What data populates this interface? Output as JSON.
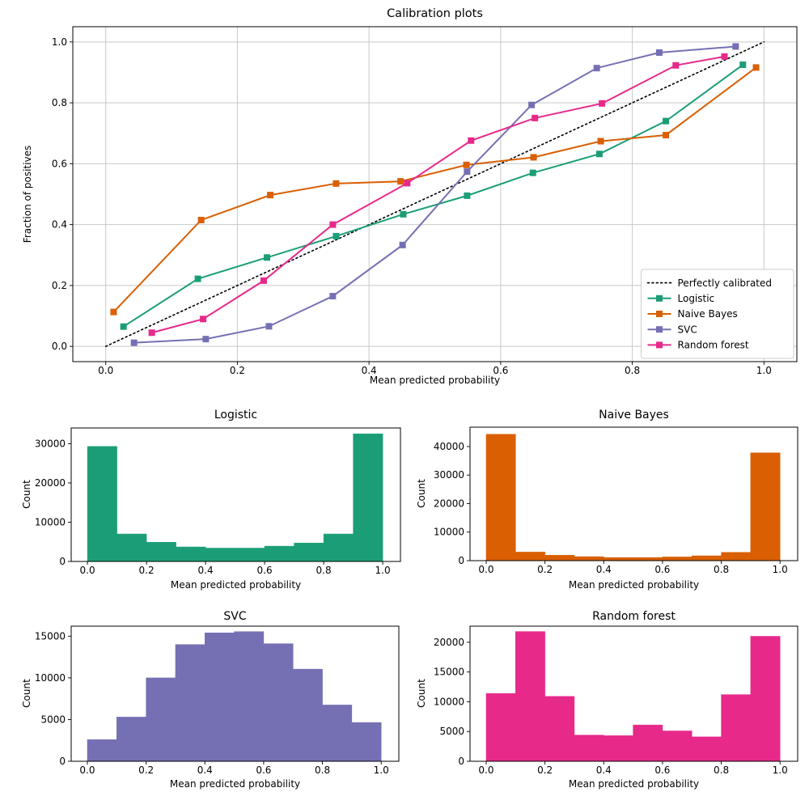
{
  "figure": {
    "background": "#ffffff"
  },
  "colors": {
    "logistic": "#1b9e77",
    "naive_bayes": "#d95f02",
    "svc": "#7570b3",
    "random_forest": "#e7298a",
    "reference": "#000000",
    "grid": "#c9c9c9",
    "legend_border": "#cccccc"
  },
  "chart_data": [
    {
      "type": "line",
      "title": "Calibration plots",
      "xlabel": "Mean predicted probability",
      "ylabel": "Fraction of positives",
      "xlim": [
        -0.05,
        1.05
      ],
      "ylim": [
        -0.05,
        1.05
      ],
      "xtick_values": [
        0,
        0.2,
        0.4,
        0.6,
        0.8,
        1
      ],
      "xtick_labels": [
        "0.0",
        "0.2",
        "0.4",
        "0.6",
        "0.8",
        "1.0"
      ],
      "ytick_values": [
        0,
        0.2,
        0.4,
        0.6,
        0.8,
        1
      ],
      "ytick_labels": [
        "0.0",
        "0.2",
        "0.4",
        "0.6",
        "0.8",
        "1.0"
      ],
      "grid": true,
      "legend": {
        "position": "lower right",
        "entries": [
          "Perfectly calibrated",
          "Logistic",
          "Naive Bayes",
          "SVC",
          "Random forest"
        ]
      },
      "series": [
        {
          "name": "Perfectly calibrated",
          "color": "#000000",
          "style": "dotted",
          "marker": "none",
          "x": [
            0,
            1
          ],
          "y": [
            0,
            1
          ]
        },
        {
          "name": "Logistic",
          "color": "#1b9e77",
          "style": "solid",
          "marker": "square",
          "x": [
            0.027,
            0.14,
            0.245,
            0.35,
            0.452,
            0.549,
            0.649,
            0.75,
            0.851,
            0.968
          ],
          "y": [
            0.065,
            0.222,
            0.292,
            0.362,
            0.434,
            0.495,
            0.57,
            0.632,
            0.74,
            0.925
          ]
        },
        {
          "name": "Naive Bayes",
          "color": "#d95f02",
          "style": "solid",
          "marker": "square",
          "x": [
            0.012,
            0.145,
            0.25,
            0.35,
            0.448,
            0.548,
            0.65,
            0.752,
            0.851,
            0.988
          ],
          "y": [
            0.113,
            0.415,
            0.497,
            0.535,
            0.542,
            0.596,
            0.621,
            0.674,
            0.694,
            0.916
          ]
        },
        {
          "name": "SVC",
          "color": "#7570b3",
          "style": "solid",
          "marker": "square",
          "x": [
            0.043,
            0.152,
            0.248,
            0.345,
            0.451,
            0.549,
            0.647,
            0.746,
            0.841,
            0.957
          ],
          "y": [
            0.012,
            0.024,
            0.066,
            0.165,
            0.333,
            0.574,
            0.793,
            0.914,
            0.965,
            0.985
          ]
        },
        {
          "name": "Random forest",
          "color": "#e7298a",
          "style": "solid",
          "marker": "square",
          "x": [
            0.07,
            0.148,
            0.24,
            0.345,
            0.458,
            0.555,
            0.652,
            0.754,
            0.866,
            0.94
          ],
          "y": [
            0.045,
            0.09,
            0.216,
            0.4,
            0.536,
            0.676,
            0.75,
            0.798,
            0.923,
            0.952
          ]
        }
      ]
    },
    {
      "type": "bar",
      "title": "Logistic",
      "xlabel": "Mean predicted probability",
      "ylabel": "Count",
      "color": "#1b9e77",
      "bin_edges": [
        0,
        0.1,
        0.2,
        0.3,
        0.4,
        0.5,
        0.6,
        0.7,
        0.8,
        0.9,
        1.0
      ],
      "values": [
        29300,
        7000,
        4900,
        3700,
        3400,
        3400,
        3900,
        4700,
        7000,
        32500
      ],
      "xlim": [
        -0.055,
        1.06
      ],
      "ylim": [
        0,
        34000
      ],
      "xtick_values": [
        0,
        0.2,
        0.4,
        0.6,
        0.8,
        1
      ],
      "xtick_labels": [
        "0.0",
        "0.2",
        "0.4",
        "0.6",
        "0.8",
        "1.0"
      ],
      "ytick_values": [
        0,
        10000,
        20000,
        30000
      ],
      "ytick_labels": [
        "0",
        "10000",
        "20000",
        "30000"
      ]
    },
    {
      "type": "bar",
      "title": "Naive Bayes",
      "xlabel": "Mean predicted probability",
      "ylabel": "Count",
      "color": "#d95f02",
      "bin_edges": [
        0,
        0.1,
        0.2,
        0.3,
        0.4,
        0.5,
        0.6,
        0.7,
        0.8,
        0.9,
        1.0
      ],
      "values": [
        44300,
        3000,
        1900,
        1400,
        1100,
        1100,
        1300,
        1700,
        2900,
        37800
      ],
      "xlim": [
        -0.055,
        1.06
      ],
      "ylim": [
        0,
        46800
      ],
      "xtick_values": [
        0,
        0.2,
        0.4,
        0.6,
        0.8,
        1
      ],
      "xtick_labels": [
        "0.0",
        "0.2",
        "0.4",
        "0.6",
        "0.8",
        "1.0"
      ],
      "ytick_values": [
        0,
        10000,
        20000,
        30000,
        40000
      ],
      "ytick_labels": [
        "0",
        "10000",
        "20000",
        "30000",
        "40000"
      ]
    },
    {
      "type": "bar",
      "title": "SVC",
      "xlabel": "Mean predicted probability",
      "ylabel": "Count",
      "color": "#7570b3",
      "bin_edges": [
        0,
        0.1,
        0.2,
        0.3,
        0.4,
        0.5,
        0.6,
        0.7,
        0.8,
        0.9,
        1.0
      ],
      "values": [
        2600,
        5300,
        10000,
        14000,
        15400,
        15550,
        14100,
        11050,
        6750,
        4650
      ],
      "xlim": [
        -0.055,
        1.06
      ],
      "ylim": [
        0,
        16200
      ],
      "xtick_values": [
        0,
        0.2,
        0.4,
        0.6,
        0.8,
        1
      ],
      "xtick_labels": [
        "0.0",
        "0.2",
        "0.4",
        "0.6",
        "0.8",
        "1.0"
      ],
      "ytick_values": [
        0,
        5000,
        10000,
        15000
      ],
      "ytick_labels": [
        "0",
        "5000",
        "10000",
        "15000"
      ]
    },
    {
      "type": "bar",
      "title": "Random forest",
      "xlabel": "Mean predicted probability",
      "ylabel": "Count",
      "color": "#e7298a",
      "bin_edges": [
        0,
        0.1,
        0.2,
        0.3,
        0.4,
        0.5,
        0.6,
        0.7,
        0.8,
        0.9,
        1.0
      ],
      "values": [
        11400,
        21800,
        10900,
        4400,
        4300,
        6100,
        5100,
        4100,
        11200,
        21000
      ],
      "xlim": [
        -0.055,
        1.06
      ],
      "ylim": [
        0,
        22700
      ],
      "xtick_values": [
        0,
        0.2,
        0.4,
        0.6,
        0.8,
        1
      ],
      "xtick_labels": [
        "0.0",
        "0.2",
        "0.4",
        "0.6",
        "0.8",
        "1.0"
      ],
      "ytick_values": [
        0,
        5000,
        10000,
        15000,
        20000
      ],
      "ytick_labels": [
        "0",
        "5000",
        "10000",
        "15000",
        "20000"
      ]
    }
  ]
}
